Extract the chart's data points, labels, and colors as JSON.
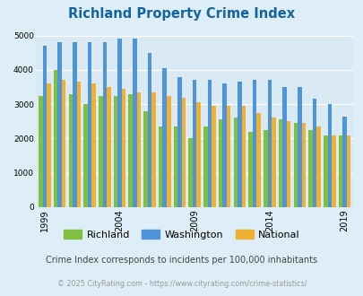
{
  "title": "Richland Property Crime Index",
  "title_color": "#1464a0",
  "subtitle": "Crime Index corresponds to incidents per 100,000 inhabitants",
  "subtitle_color": "#444444",
  "footer": "© 2025 CityRating.com - https://www.cityrating.com/crime-statistics/",
  "footer_color": "#999999",
  "years": [
    1999,
    2000,
    2001,
    2002,
    2003,
    2004,
    2005,
    2006,
    2007,
    2008,
    2009,
    2010,
    2011,
    2012,
    2013,
    2014,
    2015,
    2016,
    2017,
    2018,
    2019
  ],
  "richland": [
    3250,
    4000,
    3300,
    3000,
    3250,
    3250,
    3300,
    2800,
    2350,
    2350,
    2000,
    2350,
    2550,
    2600,
    2200,
    2250,
    2550,
    2450,
    2250,
    2100,
    2100
  ],
  "washington": [
    4700,
    4800,
    4800,
    4800,
    4800,
    4900,
    4900,
    4500,
    4050,
    3800,
    3700,
    3700,
    3600,
    3650,
    3700,
    3700,
    3500,
    3500,
    3150,
    3000,
    2650
  ],
  "national": [
    3600,
    3700,
    3650,
    3600,
    3500,
    3450,
    3350,
    3350,
    3250,
    3200,
    3050,
    2950,
    2950,
    2950,
    2750,
    2600,
    2500,
    2450,
    2350,
    2100,
    2100
  ],
  "richland_color": "#80c040",
  "washington_color": "#4d94db",
  "national_color": "#f0b030",
  "background_color": "#deeef8",
  "plot_bg_color": "#daeaf4",
  "ylim": [
    0,
    5000
  ],
  "yticks": [
    0,
    1000,
    2000,
    3000,
    4000,
    5000
  ],
  "xtick_years": [
    1999,
    2004,
    2009,
    2014,
    2019
  ],
  "legend_labels": [
    "Richland",
    "Washington",
    "National"
  ],
  "bar_width": 0.27
}
